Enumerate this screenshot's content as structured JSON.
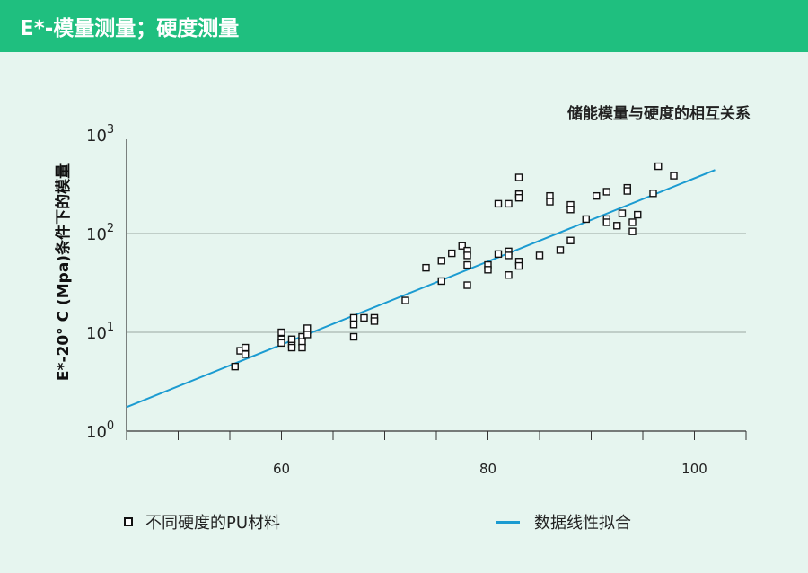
{
  "header": {
    "title": "E*-模量测量；硬度测量"
  },
  "colors": {
    "header_bg": "#1fbf7f",
    "page_bg": "#e6f5ef",
    "fit_line": "#1b9bd1",
    "marker": "#111111"
  },
  "chart_data": {
    "type": "scatter",
    "title": "储能模量与硬度的相互关系",
    "ylabel": "E*-20° C (Mpa)条件下的模量",
    "xlabel": "",
    "y_scale": "log",
    "xlim": [
      45,
      105
    ],
    "ylim": [
      1,
      1000
    ],
    "x_ticks": [
      60,
      80,
      100
    ],
    "x_tick_labels": [
      "60",
      "80",
      "100"
    ],
    "y_ticks": [
      1,
      10,
      100,
      1000
    ],
    "y_tick_labels": [
      {
        "base": "10",
        "exp": "0"
      },
      {
        "base": "10",
        "exp": "1"
      },
      {
        "base": "10",
        "exp": "2"
      },
      {
        "base": "10",
        "exp": "3"
      }
    ],
    "grid": "horizontal",
    "legend": {
      "placement": "bottom"
    },
    "series": [
      {
        "name": "不同硬度的PU材料",
        "kind": "markers",
        "points": [
          [
            55.5,
            4.5
          ],
          [
            56,
            6.5
          ],
          [
            56.5,
            7
          ],
          [
            56.5,
            6
          ],
          [
            60,
            10
          ],
          [
            60,
            8.5
          ],
          [
            60,
            7.8
          ],
          [
            61,
            7.5
          ],
          [
            61,
            8.5
          ],
          [
            61,
            7
          ],
          [
            62,
            9
          ],
          [
            62,
            8
          ],
          [
            62,
            7
          ],
          [
            62.5,
            11
          ],
          [
            62.5,
            9.5
          ],
          [
            67,
            14
          ],
          [
            67,
            12
          ],
          [
            67,
            9
          ],
          [
            68,
            14
          ],
          [
            69,
            14
          ],
          [
            69,
            13
          ],
          [
            72,
            21
          ],
          [
            74,
            45
          ],
          [
            75.5,
            53
          ],
          [
            75.5,
            33
          ],
          [
            76.5,
            63
          ],
          [
            77.5,
            75
          ],
          [
            78,
            67
          ],
          [
            78,
            60
          ],
          [
            78,
            48
          ],
          [
            78,
            30
          ],
          [
            80,
            48
          ],
          [
            80,
            43
          ],
          [
            81,
            62
          ],
          [
            81,
            200
          ],
          [
            82,
            200
          ],
          [
            82,
            66
          ],
          [
            82,
            60
          ],
          [
            82,
            38
          ],
          [
            83,
            52
          ],
          [
            83,
            47
          ],
          [
            83,
            370
          ],
          [
            83,
            250
          ],
          [
            83,
            230
          ],
          [
            85,
            60
          ],
          [
            86,
            240
          ],
          [
            86,
            210
          ],
          [
            87,
            68
          ],
          [
            88,
            195
          ],
          [
            88,
            175
          ],
          [
            88,
            85
          ],
          [
            89.5,
            140
          ],
          [
            90.5,
            240
          ],
          [
            91.5,
            265
          ],
          [
            91.5,
            140
          ],
          [
            91.5,
            130
          ],
          [
            92.5,
            120
          ],
          [
            93,
            160
          ],
          [
            93.5,
            290
          ],
          [
            93.5,
            270
          ],
          [
            94,
            130
          ],
          [
            94,
            105
          ],
          [
            94.5,
            155
          ],
          [
            96,
            255
          ],
          [
            96.5,
            480
          ],
          [
            98,
            385
          ]
        ]
      },
      {
        "name": "数据线性拟合",
        "kind": "line",
        "points": [
          [
            45,
            1.75
          ],
          [
            102,
            440
          ]
        ]
      }
    ]
  }
}
